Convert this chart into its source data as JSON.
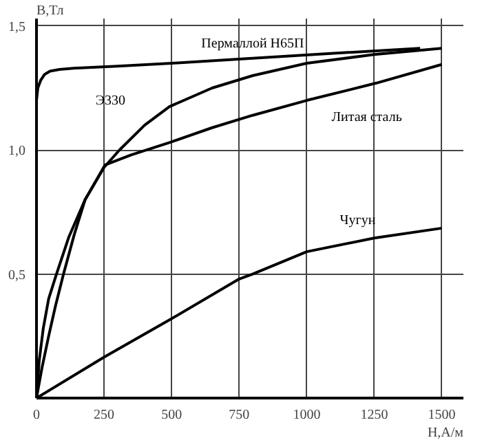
{
  "chart_data": {
    "type": "line",
    "xlabel": "Н,А/м",
    "ylabel": "В,Тл",
    "xlim": [
      0,
      1580
    ],
    "ylim": [
      0,
      1.53
    ],
    "xticks": [
      0,
      250,
      500,
      750,
      1000,
      1250,
      1500
    ],
    "yticks": [
      {
        "value": 0.5,
        "label": "0,5"
      },
      {
        "value": 1.0,
        "label": "1,0"
      },
      {
        "value": 1.5,
        "label": "1,5"
      }
    ],
    "grid": true,
    "series": [
      {
        "name": "Пермаллой Н65П",
        "color": "#000000",
        "x": [
          0,
          0,
          5,
          15,
          30,
          50,
          85,
          137,
          300,
          500,
          800,
          1100,
          1420
        ],
        "values": [
          0,
          1.2,
          1.25,
          1.28,
          1.305,
          1.318,
          1.325,
          1.33,
          1.338,
          1.35,
          1.37,
          1.39,
          1.41
        ]
      },
      {
        "name": "Э330",
        "color": "#000000",
        "x": [
          0,
          20,
          45,
          70,
          100,
          140,
          180,
          250,
          307,
          400,
          492,
          650,
          800,
          1000,
          1250,
          1500
        ],
        "values": [
          0,
          0.12,
          0.25,
          0.37,
          0.5,
          0.66,
          0.8,
          0.93,
          1.0,
          1.1,
          1.175,
          1.25,
          1.3,
          1.35,
          1.385,
          1.41
        ]
      },
      {
        "name": "Литая сталь",
        "color": "#000000",
        "x": [
          0,
          10,
          25,
          45,
          74,
          120,
          180,
          254,
          350,
          492,
          650,
          800,
          1000,
          1258,
          1500
        ],
        "values": [
          0,
          0.15,
          0.28,
          0.4,
          0.5,
          0.65,
          0.8,
          0.94,
          0.98,
          1.03,
          1.09,
          1.14,
          1.2,
          1.27,
          1.345
        ]
      },
      {
        "name": "Чугун",
        "color": "#000000",
        "x": [
          0,
          250,
          500,
          750,
          800,
          1000,
          1250,
          1500
        ],
        "values": [
          0,
          0.165,
          0.32,
          0.48,
          0.5,
          0.59,
          0.645,
          0.685
        ]
      }
    ]
  }
}
